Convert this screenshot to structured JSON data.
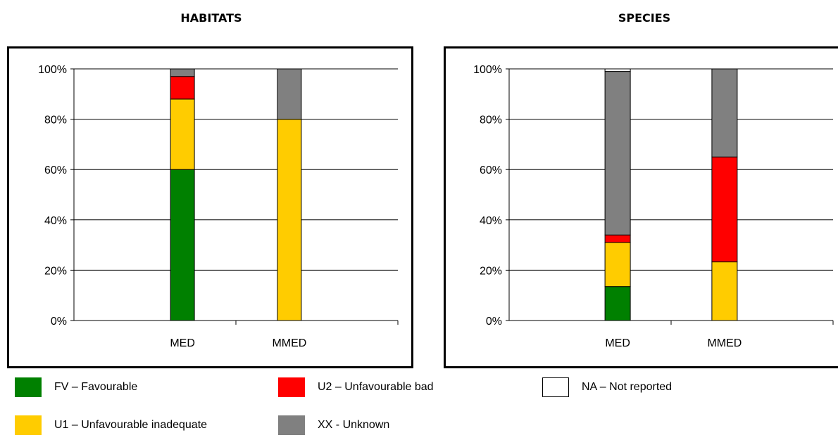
{
  "titles": {
    "habitats": "HABITATS",
    "species": "SPECIES"
  },
  "colors": {
    "FV": "#008000",
    "U1": "#FFCC00",
    "U2": "#FF0000",
    "XX": "#808080",
    "NA": "#FFFFFF"
  },
  "legend": [
    {
      "key": "FV",
      "label": "FV – Favourable"
    },
    {
      "key": "U2",
      "label": "U2 – Unfavourable bad"
    },
    {
      "key": "NA",
      "label": "NA – Not reported"
    },
    {
      "key": "U1",
      "label": "U1 – Unfavourable inadequate"
    },
    {
      "key": "XX",
      "label": "XX - Unknown"
    }
  ],
  "chart_data": [
    {
      "type": "bar",
      "stacked": true,
      "title": "HABITATS",
      "categories": [
        "MED",
        "MMED"
      ],
      "yticks": [
        "0%",
        "20%",
        "40%",
        "60%",
        "80%",
        "100%"
      ],
      "ylim": [
        0,
        100
      ],
      "grid": true,
      "series": [
        {
          "name": "FV",
          "values": [
            60,
            0
          ]
        },
        {
          "name": "U1",
          "values": [
            28,
            80
          ]
        },
        {
          "name": "U2",
          "values": [
            9,
            0
          ]
        },
        {
          "name": "XX",
          "values": [
            3,
            20
          ]
        },
        {
          "name": "NA",
          "values": [
            0,
            0
          ]
        }
      ]
    },
    {
      "type": "bar",
      "stacked": true,
      "title": "SPECIES",
      "categories": [
        "MED",
        "MMED"
      ],
      "yticks": [
        "0%",
        "20%",
        "40%",
        "60%",
        "80%",
        "100%"
      ],
      "ylim": [
        0,
        100
      ],
      "grid": true,
      "series": [
        {
          "name": "FV",
          "values": [
            13.5,
            0
          ]
        },
        {
          "name": "U1",
          "values": [
            17.5,
            23.3
          ]
        },
        {
          "name": "U2",
          "values": [
            3,
            41.7
          ]
        },
        {
          "name": "XX",
          "values": [
            65,
            35
          ]
        },
        {
          "name": "NA",
          "values": [
            1,
            0
          ]
        }
      ]
    }
  ]
}
